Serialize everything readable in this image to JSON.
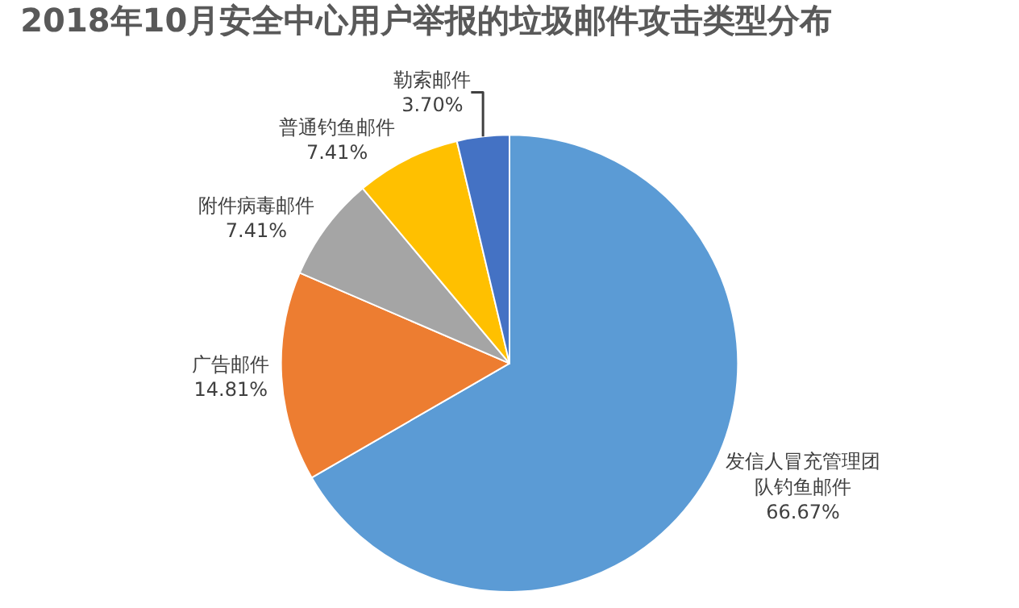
{
  "chart_data": {
    "type": "pie",
    "title": "2018年10月安全中心用户举报的垃圾邮件攻击类型分布",
    "categories": [
      "发信人冒充管理团队钓鱼邮件",
      "广告邮件",
      "附件病毒邮件",
      "普通钓鱼邮件",
      "勒索邮件"
    ],
    "values": [
      66.67,
      14.81,
      7.41,
      7.41,
      3.7
    ],
    "value_labels": [
      "66.67%",
      "14.81%",
      "7.41%",
      "7.41%",
      "3.70%"
    ],
    "colors": [
      "#5b9bd5",
      "#ed7d31",
      "#a5a5a5",
      "#ffc000",
      "#4472c4"
    ],
    "legend": false
  }
}
